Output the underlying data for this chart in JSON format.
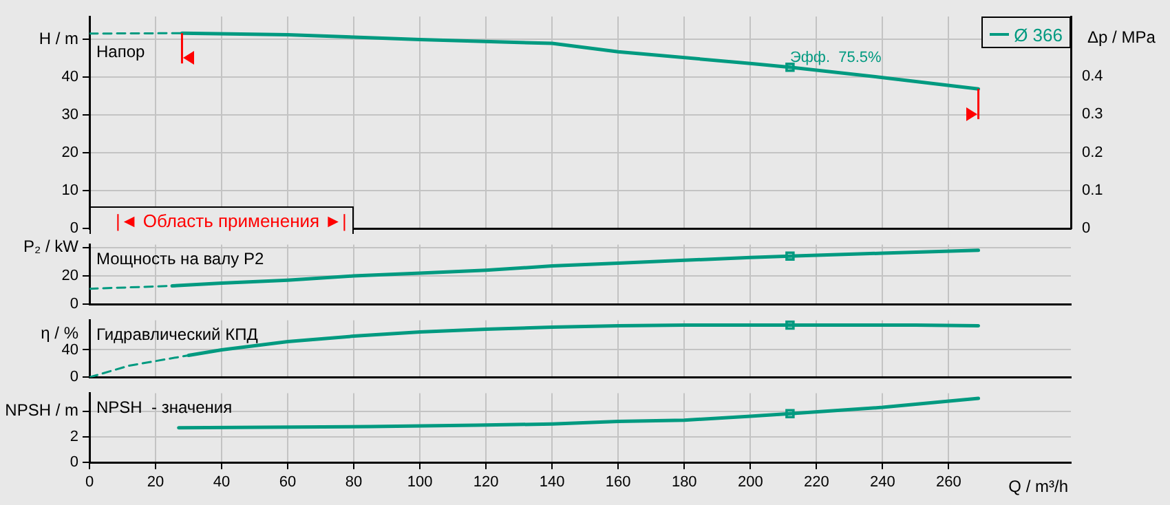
{
  "chart_data": [
    {
      "type": "line",
      "title": "Напор",
      "ylabel": "H / m",
      "y2label": "Δp / MPa",
      "xlim": [
        0,
        297
      ],
      "xticks": [
        0,
        20,
        40,
        60,
        80,
        100,
        120,
        140,
        160,
        180,
        200,
        220,
        240,
        260
      ],
      "ylim": [
        0,
        56
      ],
      "yticks": [
        0,
        10,
        20,
        30,
        40,
        {
          "value": 50,
          "label": null
        }
      ],
      "y2lim": [
        0,
        0.556
      ],
      "y2ticks": [
        0,
        0.1,
        0.2,
        0.3,
        0.4,
        {
          "value": 0.5,
          "label": null
        }
      ],
      "grid": true,
      "tick_labels": "y",
      "legend": "top right",
      "series": [
        {
          "name": "Ø 366",
          "color": "#009a80",
          "x": [
            28,
            60,
            100,
            140,
            160,
            200,
            212,
            240,
            269
          ],
          "values": [
            51.6,
            51.2,
            49.9,
            48.9,
            46.7,
            43.6,
            42.6,
            39.9,
            36.9
          ]
        },
        {
          "color": "#009a80",
          "line_style": "dashed",
          "x": [
            0,
            28
          ],
          "values": [
            51.5,
            51.6
          ]
        },
        {
          "type": "scatter",
          "marker": "square",
          "color": "#009a80",
          "x": [
            212
          ],
          "values": [
            42.6
          ]
        }
      ],
      "ref_lines": [
        {
          "axis": "x",
          "value": 28,
          "color": "#ff0000"
        },
        {
          "axis": "x",
          "value": 269,
          "color": "#ff0000"
        }
      ],
      "annotations": [
        {
          "text": "Эфф.  75.5%",
          "x": 212,
          "y": 42.6
        },
        "|◄ Область применения ►|"
      ]
    },
    {
      "type": "line",
      "title": "Мощность на валу P2",
      "ylabel": "P₂ / kW",
      "xlim": [
        0,
        297
      ],
      "xticks": [
        0,
        20,
        40,
        60,
        80,
        100,
        120,
        140,
        160,
        180,
        200,
        220,
        240,
        260
      ],
      "ylim": [
        0,
        42
      ],
      "yticks": [
        0,
        20,
        {
          "value": 40,
          "label": null
        }
      ],
      "grid": true,
      "tick_labels": "y",
      "series": [
        {
          "color": "#009a80",
          "x": [
            25,
            40,
            60,
            80,
            100,
            120,
            140,
            160,
            180,
            200,
            212,
            240,
            269
          ],
          "values": [
            13,
            15,
            17,
            20,
            22,
            24,
            27,
            29,
            31,
            33,
            34,
            36,
            38
          ]
        },
        {
          "color": "#009a80",
          "line_style": "dashed",
          "x": [
            0,
            25
          ],
          "values": [
            11,
            13
          ]
        },
        {
          "type": "scatter",
          "marker": "square",
          "color": "#009a80",
          "x": [
            212
          ],
          "values": [
            34
          ]
        }
      ]
    },
    {
      "type": "line",
      "title": "Гидравлический КПД",
      "ylabel": "η / %",
      "xlim": [
        0,
        297
      ],
      "xticks": [
        0,
        20,
        40,
        60,
        80,
        100,
        120,
        140,
        160,
        180,
        200,
        220,
        240,
        260
      ],
      "ylim": [
        0,
        83
      ],
      "yticks": [
        0,
        40
      ],
      "grid": true,
      "tick_labels": "y",
      "series": [
        {
          "color": "#009a80",
          "x": [
            30,
            40,
            60,
            80,
            100,
            120,
            140,
            160,
            180,
            212,
            250,
            269
          ],
          "values": [
            32,
            40,
            52,
            60,
            66,
            70,
            73,
            75,
            76,
            76,
            76,
            75
          ]
        },
        {
          "color": "#009a80",
          "line_style": "dashed",
          "x": [
            0,
            12,
            30
          ],
          "values": [
            0,
            17,
            32
          ]
        },
        {
          "type": "scatter",
          "marker": "square",
          "color": "#009a80",
          "x": [
            212
          ],
          "values": [
            76
          ]
        }
      ]
    },
    {
      "type": "line",
      "title": "NPSH  - значения",
      "ylabel": "NPSH / m",
      "xlabel": "Q / m³/h",
      "xlim": [
        0,
        297
      ],
      "xticks": [
        0,
        20,
        40,
        60,
        80,
        100,
        120,
        140,
        160,
        180,
        200,
        220,
        240,
        260
      ],
      "ylim": [
        0,
        5.4
      ],
      "yticks": [
        0,
        2,
        {
          "value": 4,
          "label": null
        }
      ],
      "grid": true,
      "series": [
        {
          "color": "#009a80",
          "x": [
            27,
            85,
            117,
            140,
            160,
            180,
            200,
            212,
            240,
            269
          ],
          "values": [
            2.7,
            2.8,
            2.9,
            3.0,
            3.2,
            3.3,
            3.6,
            3.8,
            4.3,
            5.0
          ]
        },
        {
          "type": "scatter",
          "marker": "square",
          "color": "#009a80",
          "x": [
            212
          ],
          "values": [
            3.8
          ]
        }
      ]
    }
  ]
}
